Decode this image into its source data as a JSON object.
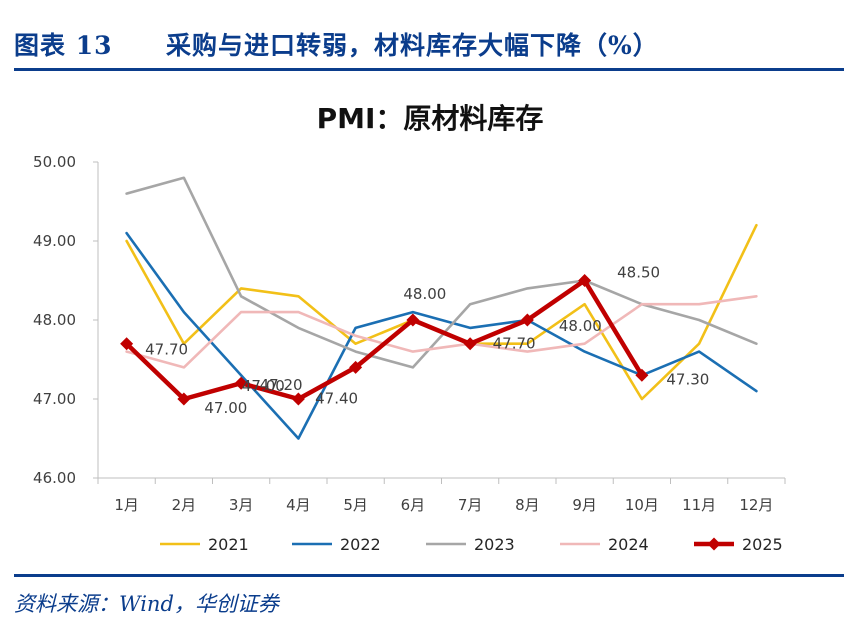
{
  "figure": {
    "label": "图表 13",
    "title": "采购与进口转弱，材料库存大幅下降（%）",
    "source": "资料来源：Wind，华创证券"
  },
  "chart_data": {
    "type": "line",
    "title": "PMI：原材料库存",
    "xlabel": "",
    "ylabel": "",
    "ylim": [
      46.0,
      50.0
    ],
    "yticks": [
      50.0,
      49.0,
      48.0,
      47.0,
      46.0
    ],
    "categories": [
      "1月",
      "2月",
      "3月",
      "4月",
      "5月",
      "6月",
      "7月",
      "8月",
      "9月",
      "10月",
      "11月",
      "12月"
    ],
    "legend_position": "bottom",
    "grid": false,
    "series": [
      {
        "name": "2021",
        "color": "#f2c018",
        "values": [
          49.0,
          47.7,
          48.4,
          48.3,
          47.7,
          48.0,
          47.7,
          47.7,
          48.2,
          47.0,
          47.7,
          49.2
        ]
      },
      {
        "name": "2022",
        "color": "#1b6fb3",
        "values": [
          49.1,
          48.1,
          47.3,
          46.5,
          47.9,
          48.1,
          47.9,
          48.0,
          47.6,
          47.3,
          47.6,
          47.1
        ]
      },
      {
        "name": "2023",
        "color": "#a6a6a6",
        "values": [
          49.6,
          49.8,
          48.3,
          47.9,
          47.6,
          47.4,
          48.2,
          48.4,
          48.5,
          48.2,
          48.0,
          47.7
        ]
      },
      {
        "name": "2024",
        "color": "#f0b8b8",
        "values": [
          47.6,
          47.4,
          48.1,
          48.1,
          47.8,
          47.6,
          47.7,
          47.6,
          47.7,
          48.2,
          48.2,
          48.3
        ]
      },
      {
        "name": "2025",
        "color": "#c00000",
        "marker": "diamond",
        "values": [
          47.7,
          47.0,
          47.2,
          47.0,
          47.4,
          48.0,
          47.7,
          48.0,
          48.5,
          47.3,
          null,
          null
        ]
      }
    ],
    "annotations": [
      {
        "series": "2025",
        "category": "1月",
        "text": "47.70"
      },
      {
        "series": "2025",
        "category": "2月",
        "text": "47.00"
      },
      {
        "series": "2025",
        "category": "3月",
        "text": "47.20"
      },
      {
        "series": "2025",
        "category": "4月",
        "text": "47.00"
      },
      {
        "series": "2025",
        "category": "5月",
        "text": "47.40"
      },
      {
        "series": "2025",
        "category": "6月",
        "text": "48.00"
      },
      {
        "series": "2025",
        "category": "7月",
        "text": "47.70"
      },
      {
        "series": "2025",
        "category": "8月",
        "text": "48.00"
      },
      {
        "series": "2025",
        "category": "9月",
        "text": "48.50"
      },
      {
        "series": "2025",
        "category": "10月",
        "text": "47.30"
      }
    ]
  }
}
